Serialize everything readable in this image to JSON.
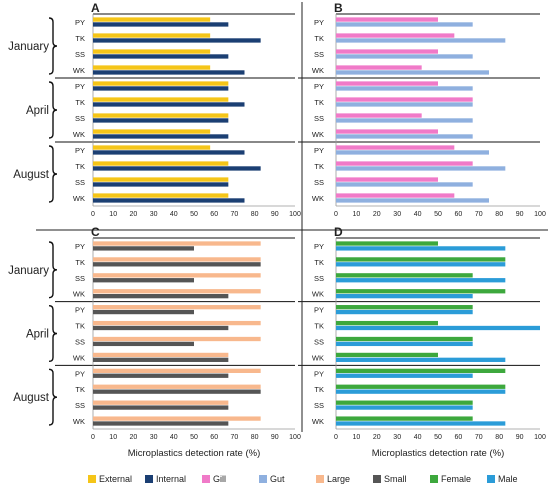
{
  "figure": {
    "legend": [
      {
        "label": "External",
        "color": "#F5C518"
      },
      {
        "label": "Internal",
        "color": "#1B3F73"
      },
      {
        "label": "Gill",
        "color": "#F07AC8"
      },
      {
        "label": "Gut",
        "color": "#8FB0DF"
      },
      {
        "label": "Large",
        "color": "#F8B88D"
      },
      {
        "label": "Small",
        "color": "#555555"
      },
      {
        "label": "Female",
        "color": "#3DA83D"
      },
      {
        "label": "Male",
        "color": "#2B9CD8"
      }
    ]
  },
  "chart_data": [
    {
      "panel": "A",
      "type": "bar",
      "orientation": "horizontal",
      "xlabel": "",
      "xlim": [
        0,
        100
      ],
      "xticks": [
        "0",
        "10",
        "20",
        "30",
        "40",
        "50",
        "60",
        "70",
        "80",
        "90",
        "100"
      ],
      "groups": [
        "January",
        "April",
        "August"
      ],
      "categories": [
        "PY",
        "TK",
        "SS",
        "WK"
      ],
      "series": [
        {
          "name": "External",
          "color": "#F5C518",
          "values": [
            [
              58,
              58,
              58,
              58
            ],
            [
              67,
              67,
              67,
              58
            ],
            [
              58,
              67,
              67,
              67
            ]
          ]
        },
        {
          "name": "Internal",
          "color": "#1B3F73",
          "values": [
            [
              67,
              83,
              67,
              75
            ],
            [
              67,
              75,
              67,
              67
            ],
            [
              75,
              83,
              67,
              75
            ]
          ]
        }
      ]
    },
    {
      "panel": "B",
      "type": "bar",
      "orientation": "horizontal",
      "xlabel": "",
      "xlim": [
        0,
        100
      ],
      "xticks": [
        "0",
        "10",
        "20",
        "30",
        "40",
        "50",
        "60",
        "70",
        "80",
        "90",
        "100"
      ],
      "groups": [
        "January",
        "April",
        "August"
      ],
      "categories": [
        "PY",
        "TK",
        "SS",
        "WK"
      ],
      "series": [
        {
          "name": "Gill",
          "color": "#F07AC8",
          "values": [
            [
              50,
              58,
              50,
              42
            ],
            [
              50,
              67,
              42,
              50
            ],
            [
              58,
              67,
              50,
              58
            ]
          ]
        },
        {
          "name": "Gut",
          "color": "#8FB0DF",
          "values": [
            [
              67,
              83,
              67,
              75
            ],
            [
              67,
              67,
              67,
              67
            ],
            [
              75,
              83,
              67,
              75
            ]
          ]
        }
      ]
    },
    {
      "panel": "C",
      "type": "bar",
      "orientation": "horizontal",
      "xlabel": "Microplastics detection rate (%)",
      "xlim": [
        0,
        100
      ],
      "xticks": [
        "0",
        "10",
        "20",
        "30",
        "40",
        "50",
        "60",
        "70",
        "80",
        "90",
        "100"
      ],
      "groups": [
        "January",
        "April",
        "August"
      ],
      "categories": [
        "PY",
        "TK",
        "SS",
        "WK"
      ],
      "series": [
        {
          "name": "Large",
          "color": "#F8B88D",
          "values": [
            [
              83,
              83,
              83,
              83
            ],
            [
              83,
              83,
              83,
              67
            ],
            [
              83,
              83,
              67,
              83
            ]
          ]
        },
        {
          "name": "Small",
          "color": "#555555",
          "values": [
            [
              50,
              83,
              50,
              67
            ],
            [
              50,
              67,
              50,
              67
            ],
            [
              67,
              83,
              67,
              67
            ]
          ]
        }
      ]
    },
    {
      "panel": "D",
      "type": "bar",
      "orientation": "horizontal",
      "xlabel": "Microplastics detection rate (%)",
      "xlim": [
        0,
        100
      ],
      "xticks": [
        "0",
        "10",
        "20",
        "30",
        "40",
        "50",
        "60",
        "70",
        "80",
        "90",
        "100"
      ],
      "groups": [
        "January",
        "April",
        "August"
      ],
      "categories": [
        "PY",
        "TK",
        "SS",
        "WK"
      ],
      "series": [
        {
          "name": "Female",
          "color": "#3DA83D",
          "values": [
            [
              50,
              83,
              67,
              83
            ],
            [
              67,
              50,
              67,
              50
            ],
            [
              83,
              83,
              67,
              67
            ]
          ]
        },
        {
          "name": "Male",
          "color": "#2B9CD8",
          "values": [
            [
              83,
              83,
              83,
              67
            ],
            [
              67,
              100,
              67,
              83
            ],
            [
              67,
              83,
              67,
              83
            ]
          ]
        }
      ]
    }
  ]
}
